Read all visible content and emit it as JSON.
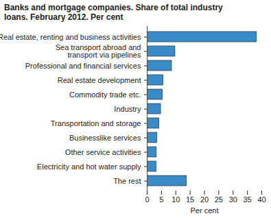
{
  "chart_data": {
    "type": "bar",
    "orientation": "horizontal",
    "title": "Banks and mortgage companies. Share of total industry loans. February 2012. Per cent",
    "categories": [
      "Real estate, renting and business activities",
      "Sea transport abroad and\ntransport via pipelines",
      "Professional and financial services",
      "Real estate development",
      "Commodity trade etc.",
      "Industry",
      "Transportation and storage",
      "Businesslike services",
      "Other service activities",
      "Electricity and hot water supply",
      "The rest"
    ],
    "values": [
      38.2,
      9.8,
      8.6,
      5.6,
      5.4,
      4.8,
      4.2,
      3.5,
      3.3,
      3.2,
      13.8
    ],
    "color": "#3a8cc8",
    "xlabel": "Per cent",
    "xlim": [
      0,
      40
    ],
    "xticks": [
      0,
      5,
      10,
      15,
      20,
      25,
      30,
      35,
      40
    ],
    "grid": false
  }
}
